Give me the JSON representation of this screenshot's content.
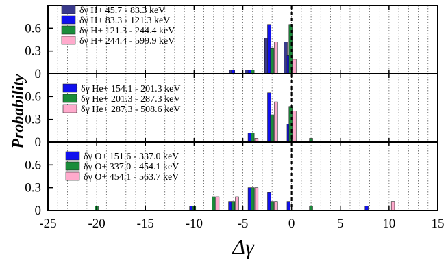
{
  "chart_data": {
    "type": "bar",
    "xlabel": "Δγ",
    "ylabel": "Probability",
    "xlim": [
      -25,
      15
    ],
    "ylim": [
      0,
      0.9
    ],
    "x_ticks": [
      "-25",
      "-20",
      "-15",
      "-10",
      "-5",
      "0",
      "5",
      "10",
      "15"
    ],
    "y_ticks": [
      "0",
      "0.3",
      "0.6"
    ],
    "grid": "vertical dotted lines at every 1 unit",
    "reference_line": {
      "x": 0,
      "style": "dashed"
    },
    "bin_width": 0.5,
    "panels": [
      {
        "species": "H+",
        "legend_position": "top-left",
        "series": [
          {
            "name": "δγ H+ 45.7 - 83.3 keV",
            "color": "#3a3a8c",
            "points": [
              {
                "x": -6.2,
                "y": 0.05
              },
              {
                "x": -4.6,
                "y": 0.05
              },
              {
                "x": -2.6,
                "y": 0.47
              },
              {
                "x": -0.6,
                "y": 0.42
              }
            ]
          },
          {
            "name": "δγ H+ 83.3 - 121.3 keV",
            "color": "#1010ee",
            "points": [
              {
                "x": -6.0,
                "y": 0.05
              },
              {
                "x": -4.3,
                "y": 0.05
              },
              {
                "x": -2.3,
                "y": 0.65
              },
              {
                "x": -0.3,
                "y": 0.24
              }
            ]
          },
          {
            "name": "δγ H+ 121.3 - 244.4 keV",
            "color": "#1a8c3a",
            "points": [
              {
                "x": -4.0,
                "y": 0.05
              },
              {
                "x": -2.0,
                "y": 0.34
              },
              {
                "x": -0.1,
                "y": 0.65
              }
            ]
          },
          {
            "name": "δγ H+ 244.4 - 599.9 keV",
            "color": "#ffaacc",
            "points": [
              {
                "x": -1.6,
                "y": 0.42
              },
              {
                "x": 0.3,
                "y": 0.19
              }
            ]
          }
        ]
      },
      {
        "species": "He+",
        "legend_position": "left",
        "series": [
          {
            "name": "δγ He+ 154.1 - 201.3 keV",
            "color": "#1010ee",
            "points": [
              {
                "x": -4.3,
                "y": 0.12
              },
              {
                "x": -2.3,
                "y": 0.65
              },
              {
                "x": -0.3,
                "y": 0.24
              }
            ]
          },
          {
            "name": "δγ He+ 201.3 - 287.3 keV",
            "color": "#1a8c3a",
            "points": [
              {
                "x": -4.0,
                "y": 0.12
              },
              {
                "x": -2.0,
                "y": 0.36
              },
              {
                "x": -0.1,
                "y": 0.47
              },
              {
                "x": 2.0,
                "y": 0.05
              }
            ]
          },
          {
            "name": "δγ He+ 287.3 - 508.6 keV",
            "color": "#ffaacc",
            "points": [
              {
                "x": -3.6,
                "y": 0.05
              },
              {
                "x": -1.6,
                "y": 0.53
              },
              {
                "x": 0.3,
                "y": 0.41
              }
            ]
          }
        ]
      },
      {
        "species": "O+",
        "legend_position": "left",
        "series": [
          {
            "name": "δγ O+ 151.6 - 337.0 keV",
            "color": "#1010ee",
            "points": [
              {
                "x": -10.3,
                "y": 0.06
              },
              {
                "x": -6.3,
                "y": 0.12
              },
              {
                "x": -4.3,
                "y": 0.3
              },
              {
                "x": -2.3,
                "y": 0.24
              },
              {
                "x": -0.3,
                "y": 0.12
              },
              {
                "x": 7.7,
                "y": 0.06
              }
            ]
          },
          {
            "name": "δγ O+ 337.0 - 454.1 keV",
            "color": "#1a8c3a",
            "points": [
              {
                "x": -20.0,
                "y": 0.06
              },
              {
                "x": -10.0,
                "y": 0.06
              },
              {
                "x": -8.0,
                "y": 0.18
              },
              {
                "x": -6.0,
                "y": 0.12
              },
              {
                "x": -4.0,
                "y": 0.3
              },
              {
                "x": -2.0,
                "y": 0.12
              },
              {
                "x": 2.0,
                "y": 0.06
              }
            ]
          },
          {
            "name": "δγ O+ 454.1 - 563.7 keV",
            "color": "#ffaacc",
            "points": [
              {
                "x": -7.6,
                "y": 0.18
              },
              {
                "x": -5.6,
                "y": 0.18
              },
              {
                "x": -3.6,
                "y": 0.3
              },
              {
                "x": -1.6,
                "y": 0.12
              },
              {
                "x": 10.4,
                "y": 0.12
              }
            ]
          }
        ]
      }
    ]
  }
}
